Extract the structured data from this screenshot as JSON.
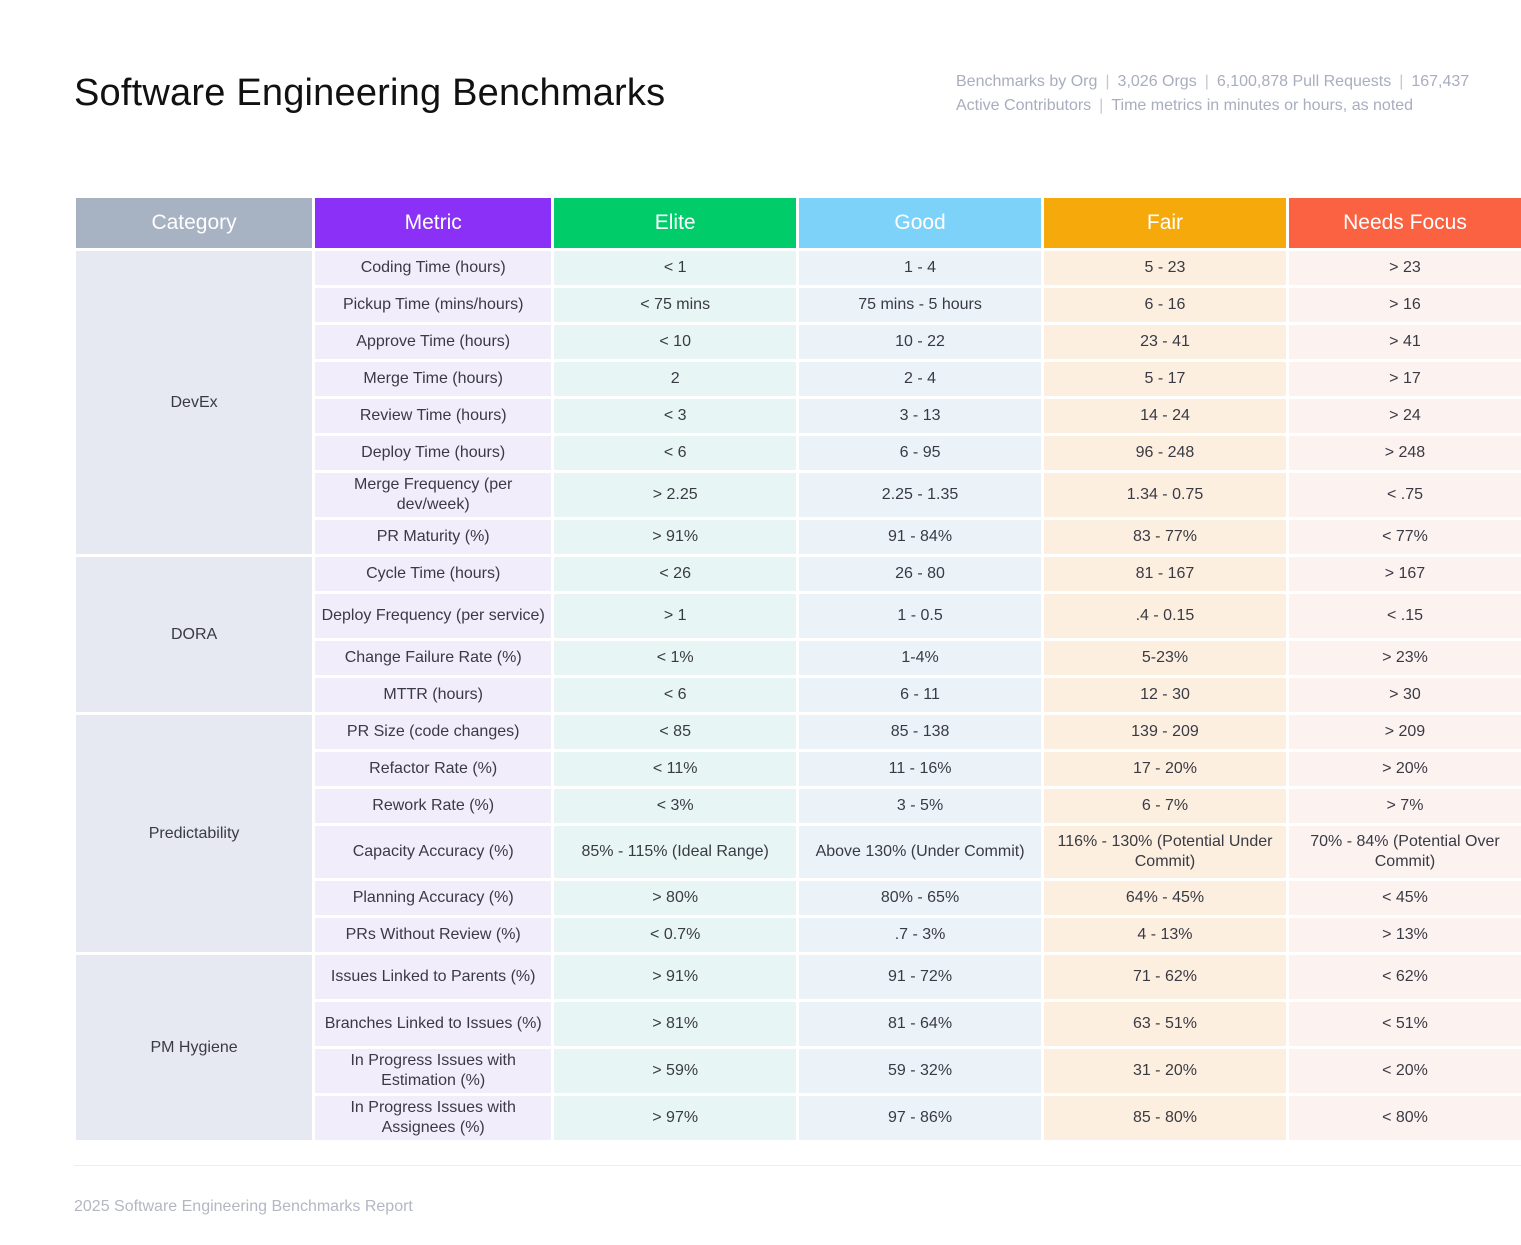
{
  "title": "Software Engineering Benchmarks",
  "meta": {
    "items": [
      "Benchmarks by Org",
      "3,026 Orgs",
      "6,100,878 Pull Requests",
      "167,437 Active Contributors",
      "Time metrics in minutes or hours, as noted"
    ]
  },
  "headers": {
    "category": "Category",
    "metric": "Metric",
    "elite": "Elite",
    "good": "Good",
    "fair": "Fair",
    "needs_focus": "Needs Focus"
  },
  "groups": [
    {
      "name": "DevEx",
      "rows": [
        {
          "metric": "Coding Time (hours)",
          "elite": "< 1",
          "good": "1 - 4",
          "fair": "5 - 23",
          "needs_focus": "> 23"
        },
        {
          "metric": "Pickup Time (mins/hours)",
          "elite": "< 75 mins",
          "good": "75 mins - 5 hours",
          "fair": "6 - 16",
          "needs_focus": "> 16"
        },
        {
          "metric": "Approve Time (hours)",
          "elite": "< 10",
          "good": "10 - 22",
          "fair": "23 - 41",
          "needs_focus": "> 41"
        },
        {
          "metric": "Merge Time (hours)",
          "elite": "2",
          "good": "2 - 4",
          "fair": "5 - 17",
          "needs_focus": "> 17"
        },
        {
          "metric": "Review Time (hours)",
          "elite": "< 3",
          "good": "3 - 13",
          "fair": "14 - 24",
          "needs_focus": "> 24"
        },
        {
          "metric": "Deploy Time (hours)",
          "elite": "< 6",
          "good": "6 - 95",
          "fair": "96 - 248",
          "needs_focus": "> 248"
        },
        {
          "metric": "Merge Frequency (per dev/week)",
          "elite": "> 2.25",
          "good": "2.25 - 1.35",
          "fair": "1.34 - 0.75",
          "needs_focus": "< .75"
        },
        {
          "metric": "PR Maturity (%)",
          "elite": "> 91%",
          "good": "91 - 84%",
          "fair": "83 - 77%",
          "needs_focus": "< 77%"
        }
      ]
    },
    {
      "name": "DORA",
      "rows": [
        {
          "metric": "Cycle Time (hours)",
          "elite": "< 26",
          "good": "26 - 80",
          "fair": "81 - 167",
          "needs_focus": "> 167"
        },
        {
          "metric": "Deploy Frequency (per service)",
          "elite": "> 1",
          "good": "1 - 0.5",
          "fair": ".4 - 0.15",
          "needs_focus": "< .15"
        },
        {
          "metric": "Change Failure Rate (%)",
          "elite": "< 1%",
          "good": "1-4%",
          "fair": "5-23%",
          "needs_focus": "> 23%"
        },
        {
          "metric": "MTTR (hours)",
          "elite": "< 6",
          "good": "6 - 11",
          "fair": "12 - 30",
          "needs_focus": "> 30"
        }
      ]
    },
    {
      "name": "Predictability",
      "rows": [
        {
          "metric": "PR Size (code changes)",
          "elite": "< 85",
          "good": "85 - 138",
          "fair": "139 - 209",
          "needs_focus": "> 209"
        },
        {
          "metric": "Refactor Rate (%)",
          "elite": "< 11%",
          "good": "11 - 16%",
          "fair": "17 - 20%",
          "needs_focus": "> 20%"
        },
        {
          "metric": "Rework Rate (%)",
          "elite": "< 3%",
          "good": "3 - 5%",
          "fair": "6 - 7%",
          "needs_focus": "> 7%"
        },
        {
          "metric": "Capacity Accuracy (%)",
          "elite": "85% - 115% (Ideal Range)",
          "good": "Above 130% (Under Commit)",
          "fair": "116% - 130% (Potential Under Commit)",
          "needs_focus": "70% - 84% (Potential Over Commit)"
        },
        {
          "metric": "Planning Accuracy (%)",
          "elite": "> 80%",
          "good": "80% - 65%",
          "fair": "64% - 45%",
          "needs_focus": "< 45%"
        },
        {
          "metric": "PRs Without Review (%)",
          "elite": "< 0.7%",
          "good": ".7 - 3%",
          "fair": "4 - 13%",
          "needs_focus": "> 13%"
        }
      ]
    },
    {
      "name": "PM Hygiene",
      "rows": [
        {
          "metric": "Issues Linked to Parents (%)",
          "elite": "> 91%",
          "good": "91 - 72%",
          "fair": "71 - 62%",
          "needs_focus": "< 62%"
        },
        {
          "metric": "Branches Linked to Issues (%)",
          "elite": "> 81%",
          "good": "81 - 64%",
          "fair": "63 - 51%",
          "needs_focus": "< 51%"
        },
        {
          "metric": "In Progress Issues with Estimation (%)",
          "elite": "> 59%",
          "good": "59 - 32%",
          "fair": "31 - 20%",
          "needs_focus": "< 20%"
        },
        {
          "metric": "In Progress Issues with Assignees (%)",
          "elite": "> 97%",
          "good": "97 - 86%",
          "fair": "85 - 80%",
          "needs_focus": "< 80%"
        }
      ]
    }
  ],
  "footer": "2025 Software Engineering Benchmarks Report"
}
